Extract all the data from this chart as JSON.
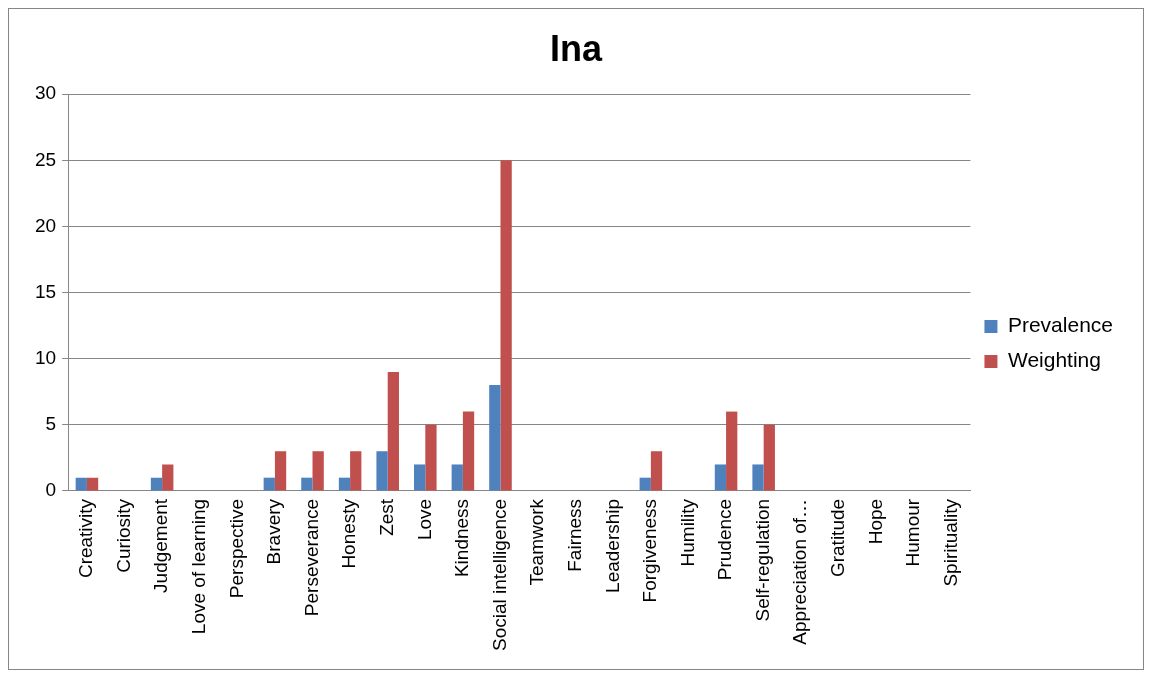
{
  "chart_data": {
    "type": "bar",
    "title": "Ina",
    "categories": [
      "Creativity",
      "Curiosity",
      "Judgement",
      "Love of learning",
      "Perspective",
      "Bravery",
      "Perseverance",
      "Honesty",
      "Zest",
      "Love",
      "Kindness",
      "Social intelligence",
      "Teamwork",
      "Fairness",
      "Leadership",
      "Forgiveness",
      "Humility",
      "Prudence",
      "Self-regulation",
      "Appreciation of…",
      "Gratitude",
      "Hope",
      "Humour",
      "Spirituality"
    ],
    "series": [
      {
        "name": "Prevalence",
        "color": "#4f81bd",
        "values": [
          1,
          0,
          1,
          0,
          0,
          1,
          1,
          1,
          3,
          2,
          2,
          8,
          0,
          0,
          0,
          1,
          0,
          2,
          2,
          0,
          0,
          0,
          0,
          0
        ]
      },
      {
        "name": "Weighting",
        "color": "#c0504d",
        "values": [
          1,
          0,
          2,
          0,
          0,
          3,
          3,
          3,
          9,
          5,
          6,
          25,
          0,
          0,
          0,
          3,
          0,
          6,
          5,
          0,
          0,
          0,
          0,
          0
        ]
      }
    ],
    "ylim": [
      0,
      30
    ],
    "yticks": [
      0,
      5,
      10,
      15,
      20,
      25,
      30
    ],
    "grid": "y",
    "legend": "right"
  }
}
